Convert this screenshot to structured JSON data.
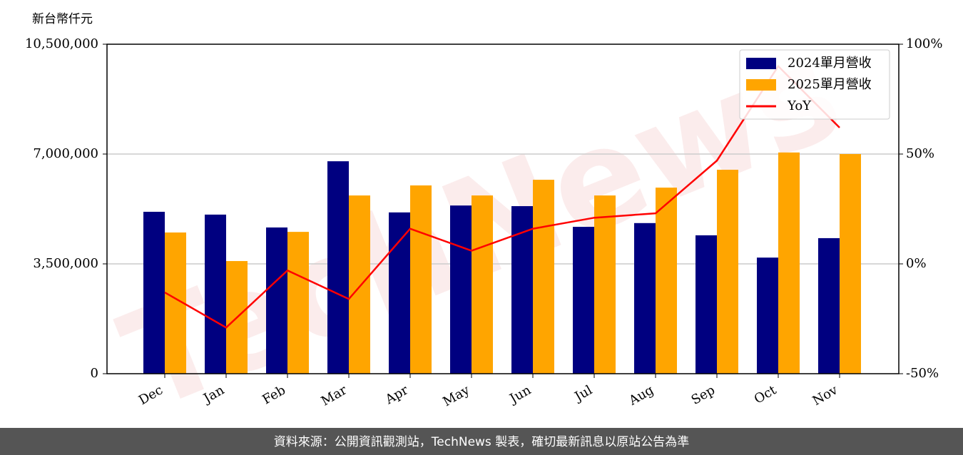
{
  "chart_data": {
    "type": "bar",
    "y_label": "新台幣仟元",
    "categories": [
      "Dec",
      "Jan",
      "Feb",
      "Mar",
      "Apr",
      "May",
      "Jun",
      "Jul",
      "Aug",
      "Sep",
      "Oct",
      "Nov"
    ],
    "series": [
      {
        "name": "2024單月營收",
        "type": "bar",
        "color": "#000080",
        "values": [
          5160000,
          5070000,
          4660000,
          6770000,
          5140000,
          5360000,
          5340000,
          4680000,
          4800000,
          4410000,
          3700000,
          4320000
        ]
      },
      {
        "name": "2025單月營收",
        "type": "bar",
        "color": "#ffa500",
        "values": [
          4500000,
          3590000,
          4520000,
          5680000,
          6000000,
          5680000,
          6180000,
          5680000,
          5930000,
          6500000,
          7050000,
          7000000
        ]
      },
      {
        "name": "YoY",
        "type": "line",
        "axis": "y2",
        "color": "#ff0000",
        "values": [
          -13,
          -29,
          -3,
          -16,
          16,
          6,
          16,
          21,
          23,
          47,
          90,
          62
        ]
      }
    ],
    "ylim": [
      0,
      10500000
    ],
    "yticks": [
      0,
      {
        "value": 3500000,
        "label": "3,500,000"
      },
      {
        "value": 7000000,
        "label": "7,000,000"
      },
      {
        "value": 10500000,
        "label": "10,500,000"
      }
    ],
    "y2lim": [
      -50,
      100
    ],
    "y2ticks": [
      {
        "value": -50,
        "label": "-50%"
      },
      {
        "value": 0,
        "label": "0%"
      },
      {
        "value": 50,
        "label": "50%"
      },
      {
        "value": 100,
        "label": "100%"
      }
    ],
    "grid": true,
    "legend": "upper right",
    "watermark": "TechNews",
    "footer": "資料來源：公開資訊觀測站，TechNews 製表，確切最新訊息以原站公告為準"
  }
}
